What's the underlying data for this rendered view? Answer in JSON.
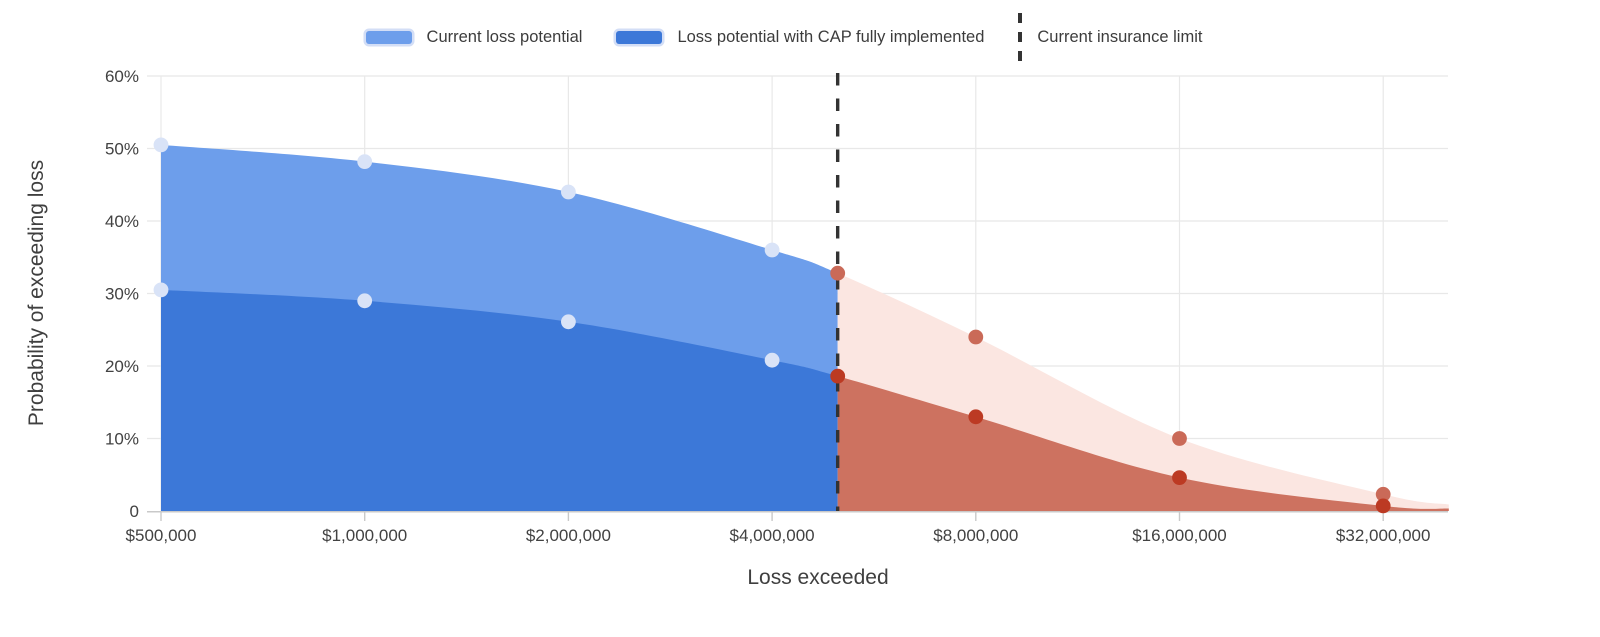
{
  "legend": {
    "items": [
      {
        "label": "Current loss potential",
        "type": "area-swatch",
        "color": "#6d9eeb"
      },
      {
        "label": "Loss potential with CAP fully implemented",
        "type": "area-swatch",
        "color": "#3c78d8"
      },
      {
        "label": "Current insurance limit",
        "type": "dashed-line",
        "color": "#333333"
      }
    ]
  },
  "chart_data": {
    "type": "area",
    "xlabel": "Loss exceeded",
    "ylabel": "Probability of exceeding loss",
    "x_scale": "log2",
    "xlim": [
      500000,
      40000000
    ],
    "ylim": [
      0,
      60
    ],
    "grid": true,
    "legend_position": "top",
    "x_ticks": [
      {
        "value": 500000,
        "label": "$500,000"
      },
      {
        "value": 1000000,
        "label": "$1,000,000"
      },
      {
        "value": 2000000,
        "label": "$2,000,000"
      },
      {
        "value": 4000000,
        "label": "$4,000,000"
      },
      {
        "value": 8000000,
        "label": "$8,000,000"
      },
      {
        "value": 16000000,
        "label": "$16,000,000"
      },
      {
        "value": 32000000,
        "label": "$32,000,000"
      }
    ],
    "y_ticks": [
      {
        "value": 0,
        "label": "0"
      },
      {
        "value": 10,
        "label": "10%"
      },
      {
        "value": 20,
        "label": "20%"
      },
      {
        "value": 30,
        "label": "30%"
      },
      {
        "value": 40,
        "label": "40%"
      },
      {
        "value": 50,
        "label": "50%"
      },
      {
        "value": 60,
        "label": "60%"
      }
    ],
    "insurance_limit": {
      "label": "Current insurance limit",
      "x": 5000000
    },
    "series": [
      {
        "name": "Current loss potential",
        "x": [
          500000,
          1000000,
          2000000,
          4000000,
          5000000,
          8000000,
          16000000,
          32000000,
          40000000
        ],
        "values": [
          50.5,
          48.2,
          44,
          36,
          32.8,
          24,
          10,
          2.3,
          0.9
        ],
        "markers": [
          true,
          true,
          true,
          true,
          true,
          true,
          true,
          true,
          false
        ],
        "fill_below_limit": "#6d9eeb",
        "fill_beyond_limit": "#fbe6e1",
        "marker_color_below_limit": "#d9e3f7",
        "marker_color_beyond_limit": "#ca6a58"
      },
      {
        "name": "Loss potential with CAP fully implemented",
        "x": [
          500000,
          1000000,
          2000000,
          4000000,
          5000000,
          8000000,
          16000000,
          32000000,
          40000000
        ],
        "values": [
          30.5,
          29,
          26.1,
          20.8,
          18.6,
          13,
          4.6,
          0.7,
          0.35
        ],
        "markers": [
          true,
          true,
          true,
          true,
          true,
          true,
          true,
          true,
          false
        ],
        "fill_below_limit": "#3c78d8",
        "fill_beyond_limit": "#cd7260",
        "marker_color_below_limit": "#d9e3f7",
        "marker_color_beyond_limit": "#bc3a23"
      }
    ]
  },
  "colors": {
    "grid": "#e8e8e8",
    "axis": "#c9c9c9",
    "tick_text": "#424242",
    "title_text": "#3f3f3f",
    "limit_line": "#333333",
    "background": "#ffffff"
  }
}
